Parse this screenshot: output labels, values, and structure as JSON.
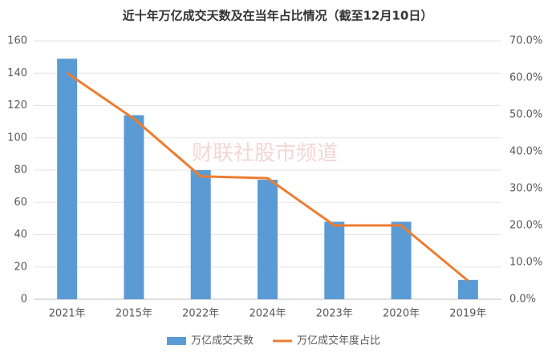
{
  "chart_data": {
    "type": "bar_line",
    "title": "近十年万亿成交天数及在当年占比情况（截至12月10日）",
    "watermark": "财联社股市频道",
    "categories": [
      "2021年",
      "2015年",
      "2022年",
      "2024年",
      "2023年",
      "2020年",
      "2019年"
    ],
    "series": [
      {
        "name": "万亿成交天数",
        "type": "bar",
        "color": "#5b9bd5",
        "values": [
          149,
          114,
          80,
          74,
          48,
          48,
          12
        ]
      },
      {
        "name": "万亿成交年度占比",
        "type": "line",
        "axis": "y2",
        "color": "#ed7d31",
        "values": [
          61.3,
          48.9,
          33.3,
          32.8,
          20,
          20,
          5
        ]
      }
    ],
    "ylim": [
      0,
      160
    ],
    "yticks": [
      0,
      20,
      40,
      60,
      80,
      100,
      120,
      140,
      160
    ],
    "y2lim": [
      0,
      70
    ],
    "y2ticks": [
      {
        "value": 0,
        "label": "0.0%"
      },
      {
        "value": 10,
        "label": "10.0%"
      },
      {
        "value": 20,
        "label": "20.0%"
      },
      {
        "value": 30,
        "label": "30.0%"
      },
      {
        "value": 40,
        "label": "40.0%"
      },
      {
        "value": 50,
        "label": "50.0%"
      },
      {
        "value": 60,
        "label": "60.0%"
      },
      {
        "value": 70,
        "label": "70.0%"
      }
    ],
    "grid": true,
    "legend": "bottom"
  }
}
